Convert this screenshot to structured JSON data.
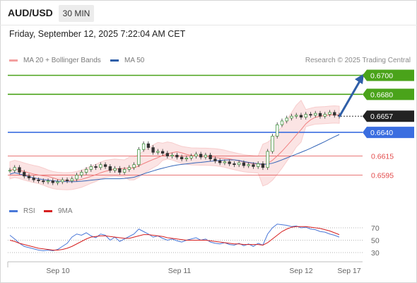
{
  "header": {
    "symbol": "AUD/USD",
    "timeframe": "30 MIN",
    "datetime": "Friday, September 12, 2025 7:22:04 AM CET",
    "credit": "Research © 2025 Trading Central"
  },
  "legend": {
    "ma20": "MA 20 + Bollinger Bands",
    "ma50": "MA 50",
    "rsi": "RSI",
    "ma9": "9MA"
  },
  "colors": {
    "green": "#4aa31a",
    "blue": "#3b6ee0",
    "red": "#e24a4a",
    "pink": "#f3a8a8",
    "arrow": "#2f5fa8",
    "current": "#222222",
    "rsi": "#4a78d8",
    "ma9": "#d62020"
  },
  "price_levels": [
    {
      "value": 0.67,
      "label": "0.6700",
      "kind": "resistance-target"
    },
    {
      "value": 0.668,
      "label": "0.6680",
      "kind": "resistance"
    },
    {
      "value": 0.6657,
      "label": "0.6657",
      "kind": "current"
    },
    {
      "value": 0.664,
      "label": "0.6640",
      "kind": "pivot"
    },
    {
      "value": 0.6615,
      "label": "0.6615",
      "kind": "support"
    },
    {
      "value": 0.6595,
      "label": "0.6595",
      "kind": "support"
    }
  ],
  "chart_data": {
    "type": "candlestick",
    "x_ticks": [
      "Sep 10",
      "Sep 11",
      "Sep 12",
      "Sep 17"
    ],
    "close_series": [
      0.66,
      0.6603,
      0.6598,
      0.6594,
      0.6592,
      0.659,
      0.6589,
      0.6588,
      0.6589,
      0.6587,
      0.6588,
      0.659,
      0.6589,
      0.6591,
      0.6595,
      0.6598,
      0.6601,
      0.6604,
      0.6603,
      0.6606,
      0.6604,
      0.66,
      0.6602,
      0.6598,
      0.6601,
      0.6603,
      0.6606,
      0.6622,
      0.6628,
      0.6624,
      0.6619,
      0.662,
      0.6618,
      0.6615,
      0.6616,
      0.6614,
      0.6612,
      0.6613,
      0.6615,
      0.6617,
      0.6614,
      0.6616,
      0.6612,
      0.661,
      0.6608,
      0.6609,
      0.6607,
      0.6606,
      0.6608,
      0.6605,
      0.6606,
      0.6604,
      0.6607,
      0.6603,
      0.662,
      0.6636,
      0.6648,
      0.6652,
      0.6655,
      0.6657,
      0.6658,
      0.6656,
      0.6659,
      0.6658,
      0.666,
      0.6657,
      0.6659,
      0.6661,
      0.6658,
      0.6657
    ],
    "rsi": {
      "levels": [
        70,
        50,
        30
      ],
      "values": [
        58,
        52,
        45,
        40,
        38,
        36,
        34,
        33,
        34,
        33,
        35,
        40,
        45,
        55,
        60,
        58,
        62,
        57,
        54,
        60,
        58,
        50,
        55,
        48,
        52,
        56,
        60,
        68,
        64,
        60,
        55,
        57,
        53,
        50,
        52,
        49,
        47,
        50,
        52,
        54,
        50,
        52,
        47,
        45,
        44,
        46,
        43,
        42,
        45,
        41,
        44,
        40,
        45,
        42,
        60,
        70,
        76,
        75,
        74,
        72,
        73,
        70,
        71,
        68,
        67,
        64,
        63,
        60,
        58,
        55
      ],
      "ma9": [
        50,
        48,
        45,
        43,
        41,
        39,
        37,
        36,
        35,
        34,
        34,
        35,
        37,
        40,
        44,
        48,
        52,
        55,
        56,
        57,
        57,
        56,
        55,
        54,
        53,
        53,
        55,
        57,
        59,
        59,
        58,
        57,
        56,
        54,
        53,
        52,
        51,
        50,
        50,
        50,
        50,
        50,
        49,
        48,
        47,
        46,
        45,
        44,
        44,
        43,
        43,
        43,
        43,
        42,
        46,
        52,
        58,
        64,
        68,
        71,
        72,
        72,
        72,
        71,
        70,
        69,
        67,
        65,
        62,
        59
      ]
    }
  }
}
